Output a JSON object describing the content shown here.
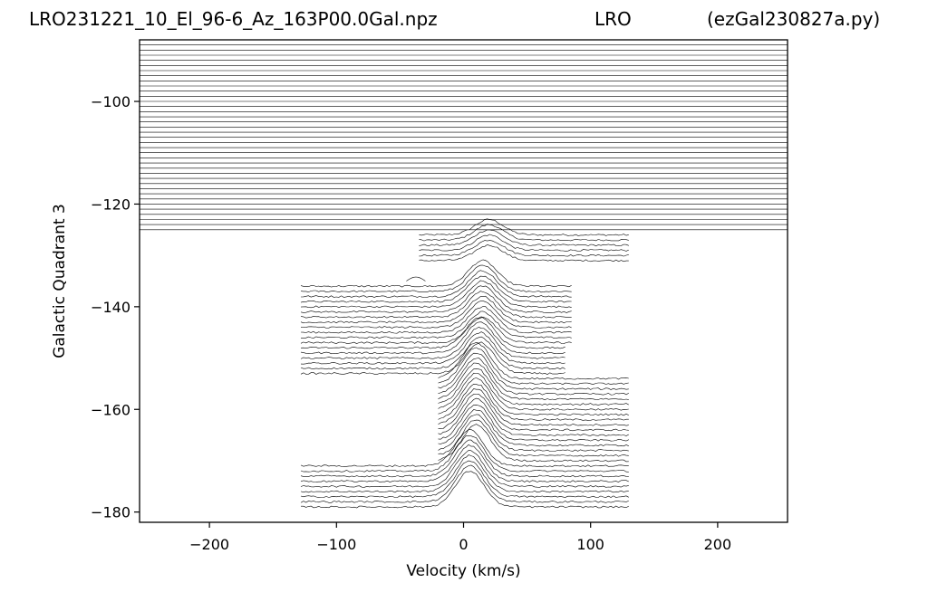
{
  "header": {
    "file_name": "LRO231221_10_El_96-6_Az_163P00.0Gal.npz",
    "station": "LRO",
    "script_name": "(ezGal230827a.py)"
  },
  "chart_data": {
    "type": "line",
    "subtype": "stacked-waterfall",
    "xlabel": "Velocity (km/s)",
    "ylabel": "Galactic Quadrant 3",
    "xlim": [
      -255,
      255
    ],
    "ylim": [
      -182,
      -88
    ],
    "x_ticks": [
      -200,
      -100,
      0,
      100,
      200
    ],
    "y_ticks": [
      -180,
      -160,
      -140,
      -120,
      -100
    ],
    "grid": false,
    "legend": "none",
    "line_color": "#000000",
    "trace_baseline_spacing": 1,
    "trace_count": 90,
    "trace_groups": [
      {
        "from": -89,
        "to": -125,
        "x_range": [
          -255,
          255
        ],
        "peak_velocity": null,
        "peak_height": 0
      },
      {
        "from": -126,
        "to": -131,
        "x_range": [
          -35,
          130
        ],
        "peak_velocity": 20,
        "peak_height": 3
      },
      {
        "from": -135,
        "to": -135,
        "x_range": [
          -45,
          -30
        ],
        "peak_velocity": -38,
        "peak_height": 0.8
      },
      {
        "from": -136,
        "to": -147,
        "x_range": [
          -128,
          85
        ],
        "peak_velocity": 15,
        "peak_height": 5
      },
      {
        "from": -148,
        "to": -153,
        "x_range": [
          -128,
          80
        ],
        "peak_velocity": 13,
        "peak_height": 6
      },
      {
        "from": -154,
        "to": -170,
        "x_range": [
          -20,
          130
        ],
        "peak_velocity": 10,
        "peak_height": 7
      },
      {
        "from": -171,
        "to": -179,
        "x_range": [
          -128,
          130
        ],
        "peak_velocity": 5,
        "peak_height": 7
      }
    ]
  }
}
